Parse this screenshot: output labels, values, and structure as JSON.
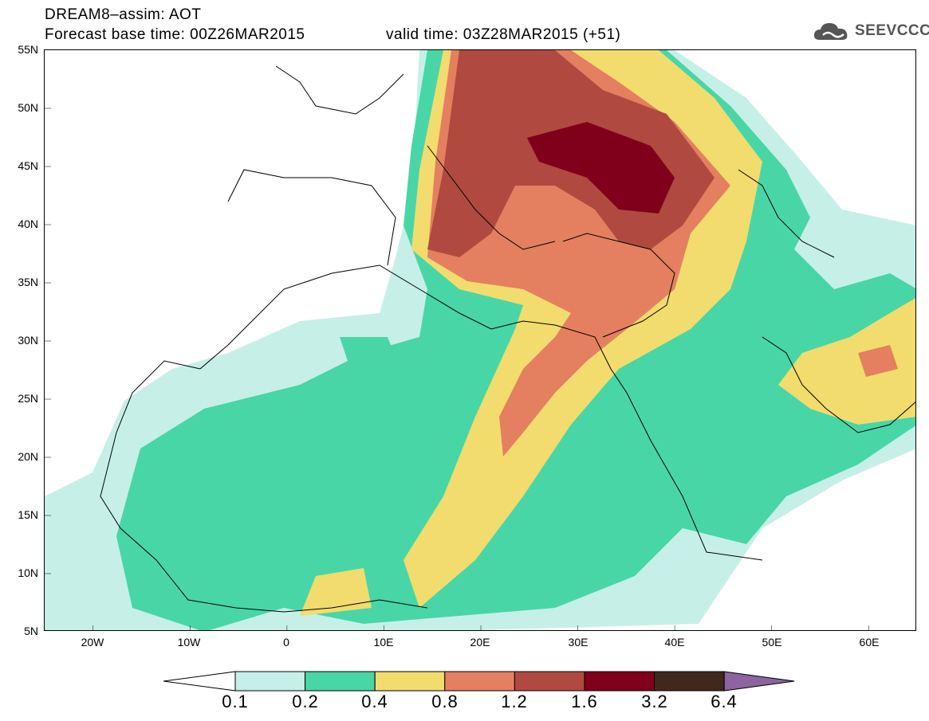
{
  "header": {
    "line1": "DREAM8–assim: AOT",
    "line2": "Forecast base time: 00Z26MAR2015",
    "valid": "valid time: 03Z28MAR2015 (+51)"
  },
  "logo": {
    "text": "SEEVCCC",
    "icon": "cloud-logo-icon"
  },
  "axes": {
    "lat_labels": [
      "55N",
      "50N",
      "45N",
      "40N",
      "35N",
      "30N",
      "25N",
      "20N",
      "15N",
      "10N",
      "5N"
    ],
    "lon_labels": [
      "20W",
      "10W",
      "0",
      "10E",
      "20E",
      "30E",
      "40E",
      "50E",
      "60E"
    ]
  },
  "colorbar": {
    "labels": [
      "0.1",
      "0.2",
      "0.4",
      "0.8",
      "1.2",
      "1.6",
      "3.2",
      "6.4"
    ],
    "colors": [
      "#ffffff",
      "#c6efe8",
      "#48d6a6",
      "#f2dc6e",
      "#e4805f",
      "#b04a40",
      "#80001c",
      "#40281c",
      "#8b64a0"
    ]
  },
  "map_data": {
    "type": "contour-map",
    "variable": "AOT",
    "lon_range": [
      -25,
      65
    ],
    "lat_range": [
      5,
      55
    ]
  }
}
